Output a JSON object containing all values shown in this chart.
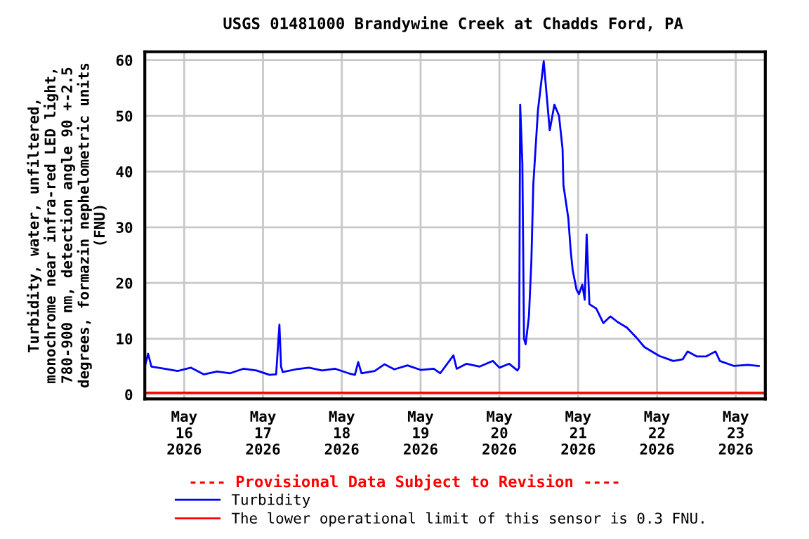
{
  "chart_data": {
    "type": "line",
    "title": "USGS 01481000 Brandywine Creek at Chadds Ford, PA",
    "ylabel": "Turbidity, water, unfiltered,\nmonochrome near infra-red LED light,\n780-900 nm, detection angle 90 +-2.5\ndegrees, formazin nephelometric units\n(FNU)",
    "x": [
      "2026-05-15T12:00",
      "2026-05-15T13:00",
      "2026-05-15T14:00",
      "2026-05-15T18:00",
      "2026-05-15T22:00",
      "2026-05-16T02:00",
      "2026-05-16T06:00",
      "2026-05-16T10:00",
      "2026-05-16T14:00",
      "2026-05-16T18:00",
      "2026-05-16T22:00",
      "2026-05-17T02:00",
      "2026-05-17T04:00",
      "2026-05-17T05:00",
      "2026-05-17T05:30",
      "2026-05-17T06:00",
      "2026-05-17T10:00",
      "2026-05-17T14:00",
      "2026-05-17T18:00",
      "2026-05-17T22:00",
      "2026-05-18T02:00",
      "2026-05-18T04:00",
      "2026-05-18T05:00",
      "2026-05-18T06:00",
      "2026-05-18T10:00",
      "2026-05-18T13:00",
      "2026-05-18T16:00",
      "2026-05-18T20:00",
      "2026-05-19T00:00",
      "2026-05-19T04:00",
      "2026-05-19T06:00",
      "2026-05-19T10:00",
      "2026-05-19T11:00",
      "2026-05-19T14:00",
      "2026-05-19T18:00",
      "2026-05-19T22:00",
      "2026-05-20T00:00",
      "2026-05-20T03:00",
      "2026-05-20T05:30",
      "2026-05-20T06:00",
      "2026-05-20T06:20",
      "2026-05-20T07:00",
      "2026-05-20T07:30",
      "2026-05-20T08:00",
      "2026-05-20T09:00",
      "2026-05-20T09:45",
      "2026-05-20T10:20",
      "2026-05-20T11:45",
      "2026-05-20T13:30",
      "2026-05-20T15:20",
      "2026-05-20T16:45",
      "2026-05-20T18:10",
      "2026-05-20T19:15",
      "2026-05-20T19:30",
      "2026-05-20T21:00",
      "2026-05-20T21:45",
      "2026-05-20T22:20",
      "2026-05-20T23:30",
      "2026-05-21T00:15",
      "2026-05-21T01:15",
      "2026-05-21T02:00",
      "2026-05-21T02:35",
      "2026-05-21T03:25",
      "2026-05-21T05:30",
      "2026-05-21T07:40",
      "2026-05-21T09:50",
      "2026-05-21T12:00",
      "2026-05-21T14:50",
      "2026-05-21T17:35",
      "2026-05-21T20:10",
      "2026-05-22T00:45",
      "2026-05-22T05:00",
      "2026-05-22T07:50",
      "2026-05-22T09:20",
      "2026-05-22T12:10",
      "2026-05-22T14:55",
      "2026-05-22T17:50",
      "2026-05-22T19:10",
      "2026-05-22T23:30",
      "2026-05-23T03:40",
      "2026-05-23T07:00"
    ],
    "series": [
      {
        "name": "Turbidity",
        "color": "#0000ff",
        "values": [
          5.0,
          7.3,
          5.0,
          4.6,
          4.2,
          4.8,
          3.6,
          4.1,
          3.8,
          4.6,
          4.3,
          3.5,
          3.6,
          12.5,
          5.0,
          4.0,
          4.5,
          4.8,
          4.3,
          4.6,
          3.8,
          3.5,
          5.8,
          3.8,
          4.2,
          5.4,
          4.5,
          5.2,
          4.4,
          4.6,
          3.8,
          7.0,
          4.6,
          5.5,
          5.0,
          6.0,
          4.8,
          5.5,
          4.3,
          4.8,
          52.0,
          41.5,
          10.0,
          9.0,
          14.0,
          24.0,
          37.7,
          51.0,
          59.8,
          47.4,
          52.0,
          50.0,
          44.0,
          37.6,
          31.6,
          25.6,
          22.3,
          18.8,
          18.0,
          19.7,
          17.0,
          28.7,
          16.2,
          15.4,
          12.8,
          14.0,
          13.0,
          12.0,
          10.3,
          8.5,
          6.9,
          6.0,
          6.3,
          7.7,
          6.8,
          6.8,
          7.7,
          6.0,
          5.1,
          5.3,
          5.1
        ]
      }
    ],
    "ref_lines": [
      {
        "axis": "y",
        "value": 0.3,
        "label": "The lower operational limit of this sensor is 0.3 FNU.",
        "color": "#ff0000"
      }
    ],
    "annotations": [
      "---- Provisional Data Subject to Revision ----"
    ],
    "xlim": [
      "2026-05-15T12:00",
      "2026-05-23T09:00"
    ],
    "xticks": [
      {
        "value": "2026-05-16",
        "label": "May\n16\n2026"
      },
      {
        "value": "2026-05-17",
        "label": "May\n17\n2026"
      },
      {
        "value": "2026-05-18",
        "label": "May\n18\n2026"
      },
      {
        "value": "2026-05-19",
        "label": "May\n19\n2026"
      },
      {
        "value": "2026-05-20",
        "label": "May\n20\n2026"
      },
      {
        "value": "2026-05-21",
        "label": "May\n21\n2026"
      },
      {
        "value": "2026-05-22",
        "label": "May\n22\n2026"
      },
      {
        "value": "2026-05-23",
        "label": "May\n23\n2026"
      }
    ],
    "ylim": [
      -0.8,
      61.5
    ],
    "yticks": [
      0,
      10,
      20,
      30,
      40,
      50,
      60
    ],
    "grid": true,
    "legend": "bottom"
  }
}
